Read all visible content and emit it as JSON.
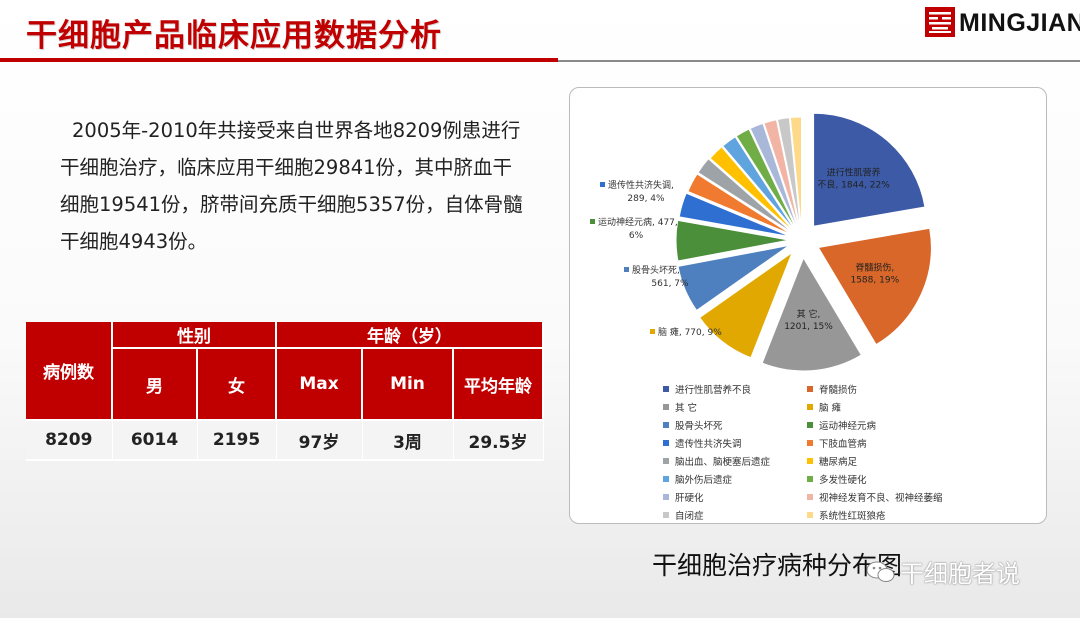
{
  "header": {
    "title": "干细胞产品临床应用数据分析",
    "brand": "MINGJIAN"
  },
  "intro": {
    "text": "2005年-2010年共接受来自世界各地8209例患进行干细胞治疗，临床应用干细胞29841份，其中脐血干细胞19541份，脐带间充质干细胞5357份，自体骨髓干细胞4943份。"
  },
  "stats_table": {
    "cases_label": "病例数",
    "gender_group": "性别",
    "age_group": "年龄（岁）",
    "male_label": "男",
    "female_label": "女",
    "max_label": "Max",
    "min_label": "Min",
    "avg_label": "平均年龄",
    "cases_value": "8209",
    "male_value": "6014",
    "female_value": "2195",
    "max_value": "97岁",
    "min_value": "3周",
    "avg_value": "29.5岁"
  },
  "chart_data": {
    "type": "pie",
    "series": [
      {
        "name": "进行性肌营养不良",
        "value": 1844,
        "percent": 22,
        "color": "#3c5aa6"
      },
      {
        "name": "脊髓损伤",
        "value": 1588,
        "percent": 19,
        "color": "#d9672a"
      },
      {
        "name": "其  它",
        "value": 1201,
        "percent": 15,
        "color": "#979797"
      },
      {
        "name": "脑  瘫",
        "value": 770,
        "percent": 9,
        "color": "#e0a800"
      },
      {
        "name": "股骨头坏死",
        "value": 561,
        "percent": 7,
        "color": "#4e7fbf"
      },
      {
        "name": "运动神经元病",
        "value": 477,
        "percent": 6,
        "color": "#4b8f3a"
      },
      {
        "name": "遗传性共济失调",
        "value": 289,
        "percent": 4,
        "color": "#2f6fd1"
      },
      {
        "name": "下肢血管病",
        "value": 230,
        "percent": 3,
        "color": "#f07a2f"
      },
      {
        "name": "脑出血、脑梗塞后遗症",
        "value": 200,
        "percent": 2,
        "color": "#9ea3a8"
      },
      {
        "name": "糖尿病足",
        "value": 190,
        "percent": 2,
        "color": "#ffc000"
      },
      {
        "name": "脑外伤后遗症",
        "value": 180,
        "percent": 2,
        "color": "#5fa3df"
      },
      {
        "name": "多发性硬化",
        "value": 170,
        "percent": 2,
        "color": "#70ad47"
      },
      {
        "name": "肝硬化",
        "value": 160,
        "percent": 2,
        "color": "#a9b7d9"
      },
      {
        "name": "视神经发育不良、视神经萎缩",
        "value": 150,
        "percent": 2,
        "color": "#f2b5a5"
      },
      {
        "name": "自闭症",
        "value": 140,
        "percent": 2,
        "color": "#c8c8c8"
      },
      {
        "name": "系统性红斑狼疮",
        "value": 130,
        "percent": 2,
        "color": "#ffd98a"
      }
    ],
    "labels": [
      {
        "text1": "进行性肌营养",
        "text2": "不良, 1844, 22%"
      },
      {
        "text1": "脊髓损伤,",
        "text2": "1588, 19%"
      },
      {
        "text1": "其  它,",
        "text2": "1201, 15%"
      },
      {
        "text1": "脑  瘫, 770, 9%",
        "text2": ""
      },
      {
        "text1": "股骨头坏死,",
        "text2": "561, 7%"
      },
      {
        "text1": "运动神经元病, 477,",
        "text2": "6%"
      },
      {
        "text1": "遗传性共济失调,",
        "text2": "289, 4%"
      }
    ],
    "legend_placement": "bottom"
  },
  "caption": "干细胞治疗病种分布图",
  "watermark": "干细胞者说"
}
